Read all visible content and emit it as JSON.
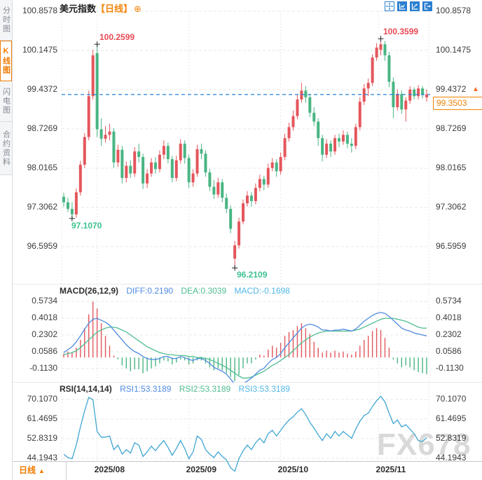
{
  "header": {
    "title": "美元指数",
    "interval": "【日线】",
    "add_icon": "⊕"
  },
  "sidebar": {
    "tabs": [
      {
        "label": "分时图",
        "active": false
      },
      {
        "label": "K线图",
        "active": true
      },
      {
        "label": "闪电图",
        "active": false
      },
      {
        "label": "合约资料",
        "active": false
      }
    ]
  },
  "toolbar": {
    "icons": [
      "crosshair",
      "chart-scale",
      "trend-line",
      "pop-out"
    ]
  },
  "price_axis": {
    "ticks": [
      "100.8578",
      "100.1475",
      "99.4372",
      "98.7269",
      "98.0165",
      "97.3062",
      "96.5959"
    ],
    "current": "99.3503"
  },
  "annotations": {
    "high1": "100.2599",
    "high2": "100.3599",
    "low1": "97.1070",
    "low2": "96.2109"
  },
  "macd_header": {
    "title": "MACD(26,12,9)",
    "diff_label": "DIFF:0.2190",
    "dea_label": "DEA:0.3039",
    "macd_label": "MACD:-0.1698"
  },
  "rsi_header": {
    "title": "RSI(14,14,14)",
    "rsi1_label": "RSI1:53.3189",
    "rsi2_label": "RSI2:53.3189",
    "rsi3_label": "RSI3:53.3189"
  },
  "footer": {
    "period": "日线",
    "arrow": "▲"
  },
  "watermark": "FX678",
  "colors": {
    "up": "#e4565c",
    "down": "#49b583",
    "ann_red": "#e84a55",
    "ann_green": "#3ec28f",
    "accent_orange": "#f08200",
    "dashed_line": "#2580d5",
    "diff_line": "#4f8ae0",
    "dea_line": "#4fbd8f",
    "rsi_line": "#3fa6d2",
    "grid": "#e6e8ea",
    "vgrid": "#dfe1e4",
    "watermark": "#d9d9d9"
  },
  "chart_data": {
    "type": "candlestick",
    "title": "美元指数 日线 (US Dollar Index, daily)",
    "x_labels": [
      "2025/08",
      "2025/09",
      "2025/10",
      "2025/11"
    ],
    "x_grid_indices": [
      8,
      30,
      52,
      75.5
    ],
    "y_ticks": [
      100.8578,
      100.1475,
      99.4372,
      98.7269,
      98.0165,
      97.3062,
      96.5959
    ],
    "last_price": 99.3503,
    "high_marks": [
      {
        "index": 8,
        "price": 100.2599
      },
      {
        "index": 76,
        "price": 100.3599
      }
    ],
    "low_marks": [
      {
        "index": 2,
        "price": 97.107
      },
      {
        "index": 41,
        "price": 96.2109
      }
    ],
    "candles": [
      [
        97.5,
        97.57,
        97.32,
        97.4
      ],
      [
        97.4,
        97.48,
        97.22,
        97.28
      ],
      [
        97.28,
        97.4,
        97.107,
        97.18
      ],
      [
        97.18,
        97.65,
        97.12,
        97.58
      ],
      [
        97.58,
        98.15,
        97.52,
        98.08
      ],
      [
        98.08,
        98.65,
        98.02,
        98.58
      ],
      [
        98.58,
        99.42,
        98.52,
        99.32
      ],
      [
        99.32,
        100.16,
        99.26,
        100.06
      ],
      [
        100.1,
        100.2599,
        98.58,
        98.72
      ],
      [
        98.72,
        98.92,
        98.42,
        98.55
      ],
      [
        98.55,
        98.78,
        98.48,
        98.62
      ],
      [
        98.62,
        98.82,
        98.52,
        98.68
      ],
      [
        98.68,
        98.74,
        98.02,
        98.12
      ],
      [
        98.12,
        98.44,
        98.04,
        98.35
      ],
      [
        98.35,
        98.42,
        97.74,
        97.84
      ],
      [
        97.84,
        98.14,
        97.76,
        98.06
      ],
      [
        98.06,
        98.16,
        97.84,
        97.92
      ],
      [
        97.92,
        98.4,
        97.86,
        98.32
      ],
      [
        98.32,
        98.46,
        98.12,
        98.22
      ],
      [
        98.22,
        98.28,
        97.64,
        97.74
      ],
      [
        97.74,
        98.0,
        97.66,
        97.92
      ],
      [
        97.92,
        98.2,
        97.86,
        98.12
      ],
      [
        98.12,
        98.22,
        97.92,
        98.0
      ],
      [
        98.0,
        98.34,
        97.94,
        98.26
      ],
      [
        98.26,
        98.52,
        98.18,
        98.42
      ],
      [
        98.42,
        98.48,
        98.1,
        98.18
      ],
      [
        98.18,
        98.24,
        97.76,
        97.84
      ],
      [
        97.84,
        98.24,
        97.78,
        98.16
      ],
      [
        98.16,
        98.54,
        98.1,
        98.46
      ],
      [
        98.46,
        98.52,
        98.1,
        98.2
      ],
      [
        98.2,
        98.26,
        97.66,
        97.76
      ],
      [
        97.76,
        98.0,
        97.68,
        97.92
      ],
      [
        97.92,
        98.44,
        97.86,
        98.36
      ],
      [
        98.36,
        98.46,
        98.18,
        98.28
      ],
      [
        98.28,
        98.34,
        97.86,
        97.94
      ],
      [
        97.94,
        98.0,
        97.6,
        97.68
      ],
      [
        97.68,
        97.8,
        97.46,
        97.54
      ],
      [
        97.54,
        97.84,
        97.48,
        97.76
      ],
      [
        97.76,
        97.82,
        97.4,
        97.48
      ],
      [
        97.48,
        97.56,
        97.2,
        97.28
      ],
      [
        97.28,
        97.34,
        96.84,
        96.92
      ],
      [
        96.38,
        96.7,
        96.2109,
        96.62
      ],
      [
        96.62,
        97.12,
        96.56,
        97.05
      ],
      [
        97.05,
        97.45,
        97.0,
        97.38
      ],
      [
        97.38,
        97.6,
        97.32,
        97.52
      ],
      [
        97.52,
        97.58,
        97.32,
        97.42
      ],
      [
        97.42,
        97.74,
        97.36,
        97.66
      ],
      [
        97.66,
        97.9,
        97.6,
        97.82
      ],
      [
        97.82,
        97.88,
        97.62,
        97.72
      ],
      [
        97.72,
        98.1,
        97.66,
        98.02
      ],
      [
        98.02,
        98.2,
        97.96,
        98.12
      ],
      [
        98.12,
        98.18,
        97.86,
        97.96
      ],
      [
        97.96,
        98.3,
        97.9,
        98.22
      ],
      [
        98.22,
        98.64,
        98.16,
        98.56
      ],
      [
        98.56,
        98.84,
        98.5,
        98.76
      ],
      [
        98.76,
        99.06,
        98.7,
        98.96
      ],
      [
        98.96,
        99.34,
        98.9,
        99.26
      ],
      [
        99.26,
        99.56,
        99.2,
        99.42
      ],
      [
        99.42,
        99.5,
        99.2,
        99.3
      ],
      [
        99.3,
        99.36,
        98.94,
        99.02
      ],
      [
        99.02,
        99.12,
        98.78,
        98.86
      ],
      [
        98.86,
        98.92,
        98.42,
        98.56
      ],
      [
        98.56,
        98.62,
        98.14,
        98.26
      ],
      [
        98.26,
        98.54,
        98.2,
        98.46
      ],
      [
        98.46,
        98.52,
        98.22,
        98.32
      ],
      [
        98.32,
        98.62,
        98.26,
        98.56
      ],
      [
        98.56,
        98.64,
        98.4,
        98.5
      ],
      [
        98.5,
        98.7,
        98.44,
        98.62
      ],
      [
        98.62,
        98.68,
        98.38,
        98.46
      ],
      [
        98.46,
        98.56,
        98.3,
        98.42
      ],
      [
        98.42,
        98.82,
        98.36,
        98.76
      ],
      [
        98.76,
        99.3,
        98.7,
        99.22
      ],
      [
        99.22,
        99.54,
        99.16,
        99.46
      ],
      [
        99.46,
        99.64,
        99.32,
        99.56
      ],
      [
        99.56,
        100.08,
        99.5,
        100.02
      ],
      [
        100.02,
        100.28,
        99.96,
        100.2
      ],
      [
        100.16,
        100.3599,
        100.06,
        100.26
      ],
      [
        100.26,
        100.32,
        99.96,
        100.06
      ],
      [
        100.06,
        100.12,
        99.48,
        99.58
      ],
      [
        99.58,
        99.66,
        98.92,
        99.12
      ],
      [
        99.12,
        99.44,
        99.06,
        99.36
      ],
      [
        99.36,
        99.42,
        99.0,
        99.08
      ],
      [
        99.08,
        99.3,
        98.86,
        99.24
      ],
      [
        99.24,
        99.5,
        99.18,
        99.44
      ],
      [
        99.44,
        99.48,
        99.26,
        99.32
      ],
      [
        99.32,
        99.52,
        99.26,
        99.46
      ],
      [
        99.46,
        99.5,
        99.28,
        99.34
      ],
      [
        99.3,
        99.44,
        99.22,
        99.3503
      ]
    ],
    "macd": {
      "params": "26,12,9",
      "diff": 0.219,
      "dea": 0.3039,
      "macd": -0.1698,
      "ticks": [
        0.5734,
        0.4018,
        0.2302,
        0.0586,
        -0.113
      ],
      "hist": [
        0.04,
        0.06,
        0.05,
        0.1,
        0.18,
        0.3,
        0.44,
        0.57,
        0.5,
        0.35,
        0.22,
        0.12,
        0.02,
        -0.02,
        -0.08,
        -0.11,
        -0.14,
        -0.12,
        -0.12,
        -0.16,
        -0.14,
        -0.11,
        -0.09,
        -0.06,
        -0.03,
        -0.04,
        -0.07,
        -0.05,
        -0.02,
        -0.03,
        -0.07,
        -0.06,
        -0.03,
        -0.03,
        -0.06,
        -0.1,
        -0.13,
        -0.11,
        -0.13,
        -0.16,
        -0.2,
        -0.24,
        -0.18,
        -0.11,
        -0.06,
        -0.06,
        -0.02,
        0.03,
        0.02,
        0.08,
        0.12,
        0.1,
        0.15,
        0.22,
        0.26,
        0.28,
        0.32,
        0.35,
        0.3,
        0.24,
        0.16,
        0.1,
        0.05,
        0.07,
        0.05,
        0.07,
        0.05,
        0.06,
        0.04,
        0.03,
        0.06,
        0.12,
        0.18,
        0.22,
        0.27,
        0.3,
        0.28,
        0.2,
        0.1,
        -0.02,
        -0.06,
        -0.1,
        -0.08,
        -0.1,
        -0.13,
        -0.15,
        -0.16,
        -0.17
      ],
      "diff_line": [
        0.05,
        0.08,
        0.11,
        0.16,
        0.22,
        0.29,
        0.35,
        0.39,
        0.4,
        0.38,
        0.36,
        0.33,
        0.28,
        0.23,
        0.18,
        0.13,
        0.09,
        0.06,
        0.04,
        0.01,
        -0.01,
        -0.02,
        -0.02,
        -0.01,
        0.01,
        0.01,
        -0.01,
        -0.01,
        0.01,
        0.0,
        -0.02,
        -0.03,
        -0.01,
        -0.01,
        -0.03,
        -0.06,
        -0.1,
        -0.12,
        -0.14,
        -0.17,
        -0.22,
        -0.27,
        -0.29,
        -0.27,
        -0.24,
        -0.21,
        -0.17,
        -0.13,
        -0.11,
        -0.06,
        -0.02,
        0.0,
        0.04,
        0.1,
        0.15,
        0.2,
        0.25,
        0.3,
        0.33,
        0.34,
        0.33,
        0.31,
        0.28,
        0.28,
        0.27,
        0.28,
        0.28,
        0.29,
        0.28,
        0.27,
        0.29,
        0.33,
        0.37,
        0.4,
        0.43,
        0.45,
        0.46,
        0.45,
        0.42,
        0.38,
        0.34,
        0.3,
        0.28,
        0.27,
        0.25,
        0.24,
        0.23,
        0.22
      ],
      "dea_line": [
        0.03,
        0.04,
        0.05,
        0.07,
        0.1,
        0.14,
        0.18,
        0.22,
        0.26,
        0.28,
        0.3,
        0.31,
        0.31,
        0.3,
        0.28,
        0.26,
        0.23,
        0.2,
        0.17,
        0.14,
        0.11,
        0.09,
        0.07,
        0.05,
        0.04,
        0.03,
        0.03,
        0.02,
        0.02,
        0.02,
        0.01,
        0.01,
        0.0,
        0.0,
        -0.01,
        -0.02,
        -0.04,
        -0.06,
        -0.08,
        -0.1,
        -0.13,
        -0.16,
        -0.19,
        -0.21,
        -0.21,
        -0.2,
        -0.18,
        -0.16,
        -0.14,
        -0.11,
        -0.08,
        -0.06,
        -0.03,
        0.0,
        0.03,
        0.07,
        0.11,
        0.15,
        0.18,
        0.21,
        0.23,
        0.25,
        0.26,
        0.27,
        0.27,
        0.27,
        0.27,
        0.27,
        0.27,
        0.27,
        0.28,
        0.29,
        0.31,
        0.33,
        0.35,
        0.37,
        0.39,
        0.4,
        0.4,
        0.4,
        0.39,
        0.38,
        0.37,
        0.35,
        0.33,
        0.31,
        0.3,
        0.3
      ]
    },
    "rsi": {
      "params": "14,14,14",
      "rsi1": 53.3189,
      "rsi2": 53.3189,
      "rsi3": 53.3189,
      "ticks": [
        70.107,
        61.4695,
        52.8319,
        44.1943
      ],
      "values": [
        46,
        44.5,
        44,
        50,
        58,
        65,
        71,
        70,
        56,
        53.5,
        53.5,
        54,
        48,
        50,
        46,
        48,
        46.5,
        51,
        50,
        45,
        47,
        49.5,
        47.5,
        50,
        52,
        49,
        45.5,
        48.5,
        52,
        48.5,
        44,
        47,
        54,
        52.5,
        48,
        46,
        44.5,
        47,
        45,
        43.5,
        40,
        38.5,
        44,
        47.5,
        50,
        48,
        51,
        53,
        51,
        55,
        56.5,
        54,
        56.5,
        59,
        61,
        62.5,
        64.5,
        66,
        63.5,
        60,
        57.5,
        54.5,
        52,
        55,
        53,
        56,
        54,
        56,
        54.5,
        53,
        57,
        60.5,
        63,
        64,
        67,
        69.5,
        71.5,
        69,
        64,
        59.5,
        61,
        58,
        59,
        57,
        55,
        52,
        51.5,
        53.3
      ]
    }
  }
}
